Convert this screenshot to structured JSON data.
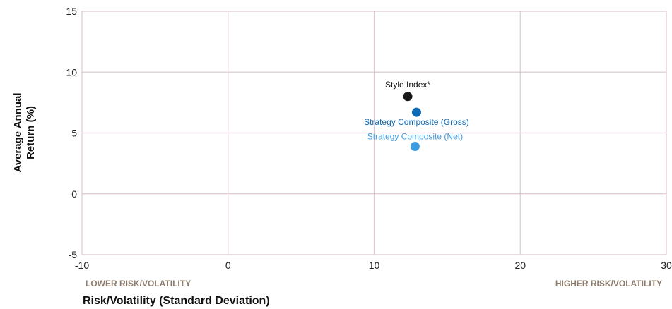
{
  "chart_data": {
    "type": "scatter",
    "xlabel": "Risk/Volatility (Standard Deviation)",
    "ylabel_lines": [
      "Average Annual",
      "Return (%)"
    ],
    "xlim": [
      -10,
      30
    ],
    "ylim": [
      -5,
      15
    ],
    "x_ticks": [
      -10,
      0,
      10,
      20,
      30
    ],
    "y_ticks": [
      -5,
      0,
      5,
      10,
      15
    ],
    "x_tick_labels": [
      "-10",
      "0",
      "10",
      "20",
      "30"
    ],
    "y_tick_labels": [
      "-5",
      "0",
      "5",
      "10",
      "15"
    ],
    "grid": true,
    "grid_color": "#dcc9d3",
    "region_labels": {
      "left": "LOWER RISK/VOLATILITY",
      "right": "HIGHER RISK/VOLATILITY"
    },
    "series": [
      {
        "name": "Style Index*",
        "x": 12.3,
        "y": 8.0,
        "color": "#1a1a1a",
        "label_color": "#111111"
      },
      {
        "name": "Strategy Composite (Gross)",
        "x": 12.9,
        "y": 6.7,
        "color": "#0f6ab4",
        "label_color": "#0f6ab4"
      },
      {
        "name": "Strategy Composite (Net)",
        "x": 12.8,
        "y": 3.9,
        "color": "#3d9be0",
        "label_color": "#3d9be0"
      }
    ]
  }
}
